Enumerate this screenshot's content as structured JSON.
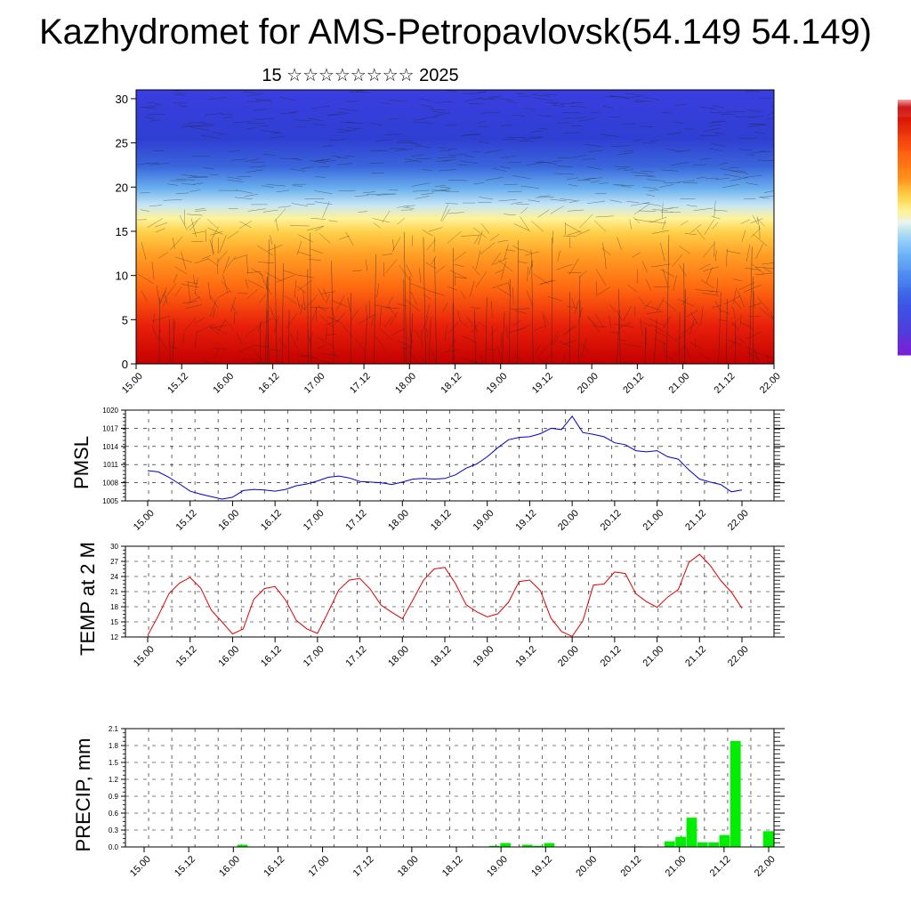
{
  "title": "Kazhydromet for AMS-Petropavlovsk(54.149 54.149)",
  "subtitle": "15 ☆☆☆☆☆☆☆☆ 2025",
  "colors": {
    "pmsl": "#0000cc",
    "temp": "#dd0000",
    "precip": "#00ee00",
    "gridline": "#000000"
  },
  "chart_data": [
    {
      "type": "heatmap",
      "name": "cross-section",
      "y_ticks": [
        0,
        5,
        10,
        15,
        20,
        25,
        30
      ],
      "ylim": [
        0,
        31
      ],
      "x_labels": [
        "15.00",
        "15.12",
        "16.00",
        "16.12",
        "17.00",
        "17.12",
        "18.00",
        "18.12",
        "19.00",
        "19.12",
        "20.00",
        "20.12",
        "21.00",
        "21.12",
        "22.00"
      ],
      "colorbar": [
        "#7a1fd6",
        "#4d3fdc",
        "#3858e6",
        "#4a86f0",
        "#68b8f8",
        "#a6dcfa",
        "#e6f4fa",
        "#fff7a8",
        "#ffd74e",
        "#ffb02e",
        "#ff8c1a",
        "#ff5f10",
        "#e82a0a",
        "#c40000",
        "#f4a3a8"
      ]
    },
    {
      "type": "line",
      "name": "pmsl",
      "ylabel": "PMSL",
      "ylim": [
        1005,
        1020
      ],
      "y_ticks": [
        1005,
        1008,
        1011,
        1014,
        1017,
        1020
      ],
      "x_labels": [
        "15.00",
        "15.12",
        "16.00",
        "16.12",
        "17.00",
        "17.12",
        "18.00",
        "18.12",
        "19.00",
        "19.12",
        "20.00",
        "20.12",
        "21.00",
        "21.12",
        "22.00"
      ],
      "values": [
        1010.0,
        1009.8,
        1008.9,
        1007.8,
        1006.6,
        1006.1,
        1005.7,
        1005.3,
        1005.6,
        1006.7,
        1006.9,
        1006.8,
        1006.6,
        1006.9,
        1007.5,
        1007.8,
        1008.3,
        1008.9,
        1009.1,
        1008.8,
        1008.2,
        1008.1,
        1008.0,
        1007.7,
        1008.1,
        1008.6,
        1008.7,
        1008.6,
        1008.7,
        1009.3,
        1010.4,
        1011.1,
        1012.3,
        1013.8,
        1015.1,
        1015.5,
        1015.6,
        1016.1,
        1017.0,
        1016.8,
        1019.0,
        1016.3,
        1016.0,
        1015.6,
        1014.6,
        1014.3,
        1013.3,
        1013.1,
        1013.3,
        1012.3,
        1011.9,
        1010.1,
        1008.6,
        1008.1,
        1007.7,
        1006.5,
        1006.8
      ],
      "grid": true
    },
    {
      "type": "line",
      "name": "temp",
      "ylabel": "TEMP at 2 M",
      "ylim": [
        12,
        30
      ],
      "y_ticks": [
        12,
        15,
        18,
        21,
        24,
        27,
        30
      ],
      "x_labels": [
        "15.00",
        "15.12",
        "16.00",
        "16.12",
        "17.00",
        "17.12",
        "18.00",
        "18.12",
        "19.00",
        "19.12",
        "20.00",
        "20.12",
        "21.00",
        "21.12",
        "22.00"
      ],
      "values": [
        12.3,
        16.2,
        20.6,
        22.7,
        23.8,
        21.7,
        17.3,
        15.0,
        12.6,
        13.6,
        19.5,
        21.6,
        22.0,
        19.3,
        15.3,
        13.6,
        12.7,
        16.9,
        21.3,
        23.3,
        23.6,
        21.4,
        18.3,
        16.9,
        15.6,
        19.4,
        23.3,
        25.5,
        25.8,
        22.6,
        18.4,
        17.0,
        16.0,
        16.6,
        18.9,
        23.0,
        23.3,
        21.2,
        15.7,
        13.1,
        12.1,
        15.2,
        22.3,
        22.5,
        24.9,
        24.6,
        20.6,
        19.0,
        17.9,
        19.9,
        21.4,
        26.8,
        28.4,
        26.2,
        23.2,
        20.9,
        17.7
      ],
      "grid": true
    },
    {
      "type": "bar",
      "name": "precip",
      "ylabel": "PRECIP, mm",
      "ylim": [
        0,
        2.1
      ],
      "y_ticks": [
        "0.0",
        "0.3",
        "0.6",
        "0.9",
        "1.2",
        "1.5",
        "1.8",
        "2.1"
      ],
      "x_labels": [
        "15.00",
        "15.12",
        "16.00",
        "16.12",
        "17.00",
        "17.12",
        "18.00",
        "18.12",
        "19.00",
        "19.12",
        "20.00",
        "20.12",
        "21.00",
        "21.12",
        "22.00"
      ],
      "values": [
        0,
        0,
        0,
        0,
        0,
        0,
        0,
        0,
        0,
        0.04,
        0,
        0,
        0,
        0,
        0,
        0,
        0,
        0,
        0,
        0,
        0,
        0,
        0,
        0,
        0,
        0,
        0,
        0,
        0,
        0,
        0.01,
        0,
        0.02,
        0.07,
        0,
        0.04,
        0.02,
        0.07,
        0,
        0,
        0,
        0,
        0.01,
        0,
        0,
        0.01,
        0,
        0,
        0.1,
        0.18,
        0.52,
        0.08,
        0.08,
        0.21,
        1.88,
        0,
        0,
        0.28
      ],
      "grid": true
    }
  ]
}
